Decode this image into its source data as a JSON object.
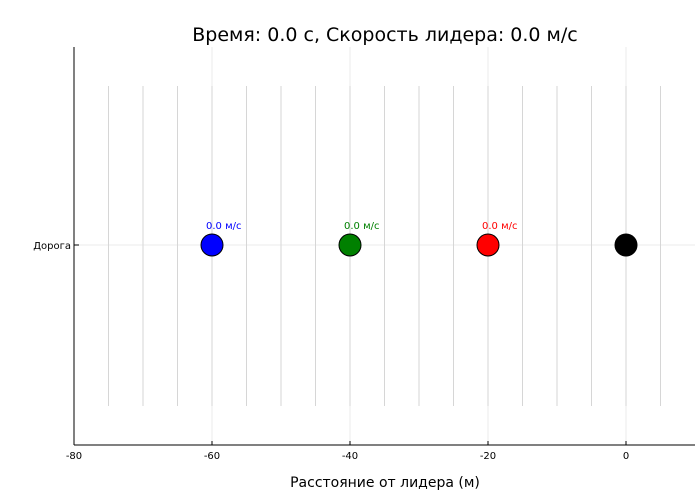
{
  "chart_data": {
    "type": "scatter",
    "title": "Время: 0.0 с, Скорость лидера: 0.0 м/с",
    "xlabel": "Расстояние от лидера (м)",
    "ylabel": "",
    "xlim": [
      -80,
      10
    ],
    "x_ticks": [
      "-80",
      "-60",
      "-40",
      "-20",
      "0"
    ],
    "x_tick_values": [
      -80,
      -60,
      -40,
      -20,
      0
    ],
    "y_tick_label": "Дорога",
    "lane_line_positions": [
      -75,
      -70,
      -65,
      -60,
      -55,
      -50,
      -45,
      -40,
      -35,
      -30,
      -25,
      -20,
      -15,
      -10,
      -5,
      0,
      5
    ],
    "grid": true,
    "vehicles": [
      {
        "x": -60,
        "color": "#0000ff",
        "speed_label": "0.0 м/с"
      },
      {
        "x": -40,
        "color": "#008000",
        "speed_label": "0.0 м/с"
      },
      {
        "x": -20,
        "color": "#ff0000",
        "speed_label": "0.0 м/с"
      },
      {
        "x": 0,
        "color": "#000000",
        "speed_label": ""
      }
    ]
  }
}
